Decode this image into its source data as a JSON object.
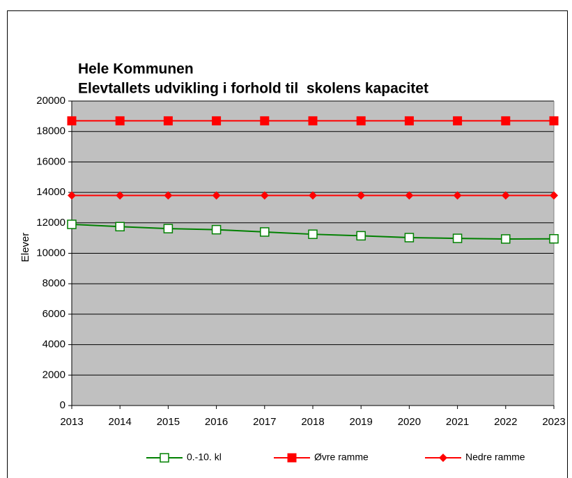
{
  "chart_data": {
    "type": "line",
    "title": [
      "Hele Kommunen",
      "Elevtallets udvikling i forhold til  skolens kapacitet"
    ],
    "ylabel": "Elever",
    "categories": [
      "2013",
      "2014",
      "2015",
      "2016",
      "2017",
      "2018",
      "2019",
      "2020",
      "2021",
      "2022",
      "2023"
    ],
    "series": [
      {
        "name": "0.-10. kl",
        "color": "#008000",
        "marker": "square-open",
        "values": [
          11900,
          11750,
          11620,
          11550,
          11400,
          11250,
          11150,
          11030,
          10980,
          10940,
          10950
        ]
      },
      {
        "name": "Øvre ramme",
        "color": "#ff0000",
        "marker": "square",
        "values": [
          18700,
          18700,
          18700,
          18700,
          18700,
          18700,
          18700,
          18700,
          18700,
          18700,
          18700
        ]
      },
      {
        "name": "Nedre ramme",
        "color": "#ff0000",
        "marker": "diamond",
        "values": [
          13800,
          13800,
          13800,
          13800,
          13800,
          13800,
          13800,
          13800,
          13800,
          13800,
          13800
        ]
      }
    ],
    "ylim": [
      0,
      20000
    ],
    "yticks": [
      0,
      2000,
      4000,
      6000,
      8000,
      10000,
      12000,
      14000,
      16000,
      18000,
      20000
    ],
    "grid": true,
    "plot_background": "#c0c0c0",
    "legend": "bottom"
  }
}
